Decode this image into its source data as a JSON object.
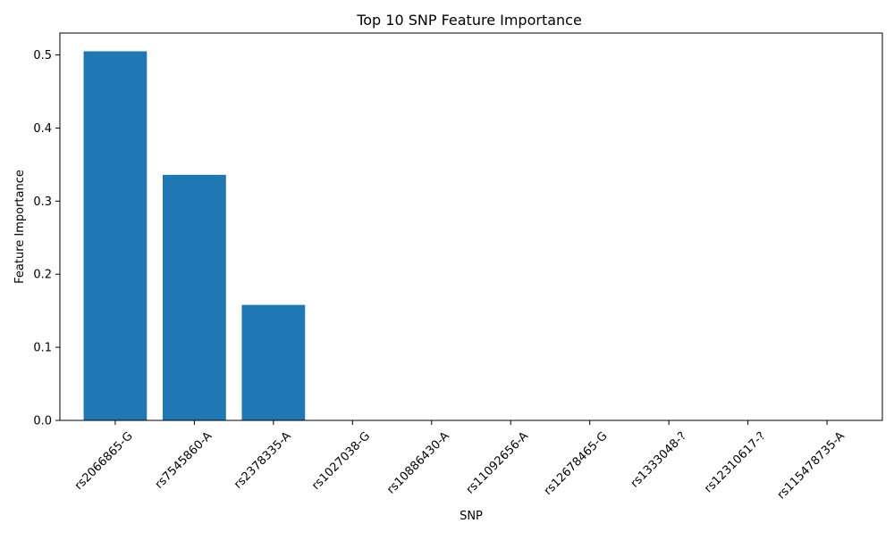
{
  "chart_data": {
    "type": "bar",
    "title": "Top 10 SNP Feature Importance",
    "xlabel": "SNP",
    "ylabel": "Feature Importance",
    "categories": [
      "rs2066865-G",
      "rs7545860-A",
      "rs2378335-A",
      "rs1027038-G",
      "rs10886430-A",
      "rs11092656-A",
      "rs12678465-G",
      "rs1333048-?",
      "rs12310617-?",
      "rs115478735-A"
    ],
    "values": [
      0.505,
      0.336,
      0.158,
      0.0,
      0.0,
      0.0,
      0.0,
      0.0,
      0.0,
      0.0
    ],
    "ylim": [
      0,
      0.53
    ],
    "yticks": [
      0.0,
      0.1,
      0.2,
      0.3,
      0.4,
      0.5
    ],
    "ytick_labels": [
      "0.0",
      "0.1",
      "0.2",
      "0.3",
      "0.4",
      "0.5"
    ],
    "x_tick_rotation": 45,
    "grid": false,
    "legend": "none",
    "bar_color": "#1f77b4"
  }
}
